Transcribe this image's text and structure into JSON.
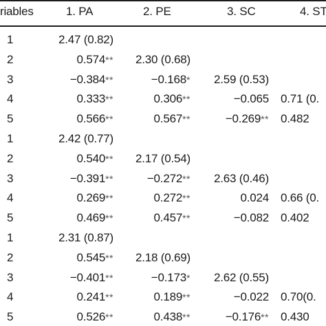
{
  "table": {
    "headers": [
      "riables",
      "1. PA",
      "2. PE",
      "3. SC",
      "4. ST"
    ],
    "rows": [
      {
        "var": "1",
        "c1": "2.47 (0.82)",
        "c1s": "",
        "c2": "",
        "c2s": "",
        "c3": "",
        "c3s": "",
        "c4": "",
        "c4s": ""
      },
      {
        "var": "2",
        "c1": "0.574",
        "c1s": "**",
        "c2": "2.30 (0.68)",
        "c2s": "",
        "c3": "",
        "c3s": "",
        "c4": "",
        "c4s": ""
      },
      {
        "var": "3",
        "c1": "−0.384",
        "c1s": "**",
        "c2": "−0.168",
        "c2s": "*",
        "c3": "2.59 (0.53)",
        "c3s": "",
        "c4": "",
        "c4s": ""
      },
      {
        "var": "4",
        "c1": "0.333",
        "c1s": "**",
        "c2": "0.306",
        "c2s": "**",
        "c3": "−0.065",
        "c3s": "",
        "c4": "0.71 (0.",
        "c4s": ""
      },
      {
        "var": "5",
        "c1": "0.566",
        "c1s": "**",
        "c2": "0.567",
        "c2s": "**",
        "c3": "−0.269",
        "c3s": "**",
        "c4": "0.482",
        "c4s": ""
      },
      {
        "var": "1",
        "c1": "2.42 (0.77)",
        "c1s": "",
        "c2": "",
        "c2s": "",
        "c3": "",
        "c3s": "",
        "c4": "",
        "c4s": ""
      },
      {
        "var": "2",
        "c1": "0.540",
        "c1s": "**",
        "c2": "2.17 (0.54)",
        "c2s": "",
        "c3": "",
        "c3s": "",
        "c4": "",
        "c4s": ""
      },
      {
        "var": "3",
        "c1": "−0.391",
        "c1s": "**",
        "c2": "−0.272",
        "c2s": "**",
        "c3": "2.63 (0.46)",
        "c3s": "",
        "c4": "",
        "c4s": ""
      },
      {
        "var": "4",
        "c1": "0.269",
        "c1s": "**",
        "c2": "0.272",
        "c2s": "**",
        "c3": "0.024",
        "c3s": "",
        "c4": "0.66 (0.",
        "c4s": ""
      },
      {
        "var": "5",
        "c1": "0.469",
        "c1s": "**",
        "c2": "0.457",
        "c2s": "**",
        "c3": "−0.082",
        "c3s": "",
        "c4": "0.402",
        "c4s": ""
      },
      {
        "var": "1",
        "c1": "2.31 (0.87)",
        "c1s": "",
        "c2": "",
        "c2s": "",
        "c3": "",
        "c3s": "",
        "c4": "",
        "c4s": ""
      },
      {
        "var": "2",
        "c1": "0.545",
        "c1s": "**",
        "c2": "2.18 (0.69)",
        "c2s": "",
        "c3": "",
        "c3s": "",
        "c4": "",
        "c4s": ""
      },
      {
        "var": "3",
        "c1": "−0.401",
        "c1s": "**",
        "c2": "−0.173",
        "c2s": "*",
        "c3": "2.62 (0.55)",
        "c3s": "",
        "c4": "",
        "c4s": ""
      },
      {
        "var": "4",
        "c1": "0.241",
        "c1s": "**",
        "c2": "0.189",
        "c2s": "**",
        "c3": "−0.022",
        "c3s": "",
        "c4": "0.70(0.",
        "c4s": ""
      },
      {
        "var": "5",
        "c1": "0.526",
        "c1s": "**",
        "c2": "0.438",
        "c2s": "**",
        "c3": "−0.176",
        "c3s": "**",
        "c4": "0.430",
        "c4s": ""
      }
    ]
  }
}
